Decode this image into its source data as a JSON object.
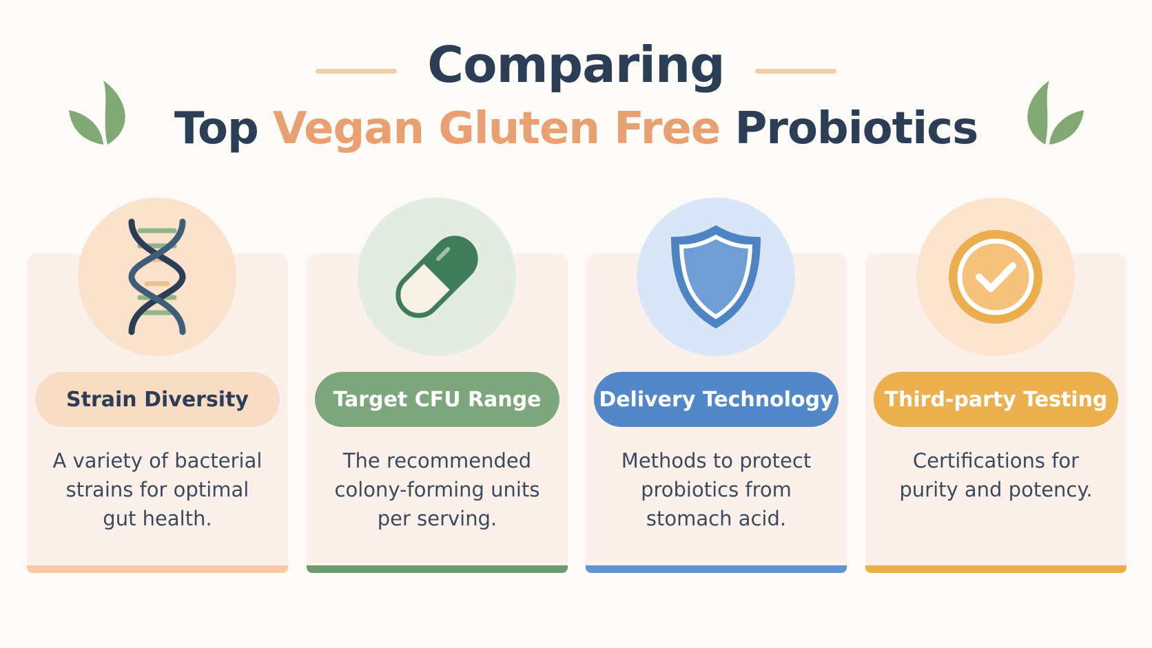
{
  "header": {
    "title_line1": "Comparing",
    "title_line2": {
      "start": "Top",
      "highlight": "Vegan Gluten Free",
      "end": "Probiotics"
    }
  },
  "cards": [
    {
      "title": "Strain Diversity",
      "description": "A variety of bacterial strains for optimal gut health."
    },
    {
      "title": "Target CFU Range",
      "description": "The recommended colony-forming units per serving."
    },
    {
      "title": "Delivery Technology",
      "description": "Methods to protect probiotics from stomach acid."
    },
    {
      "title": "Third-party Testing",
      "description": "Certifications for purity and potency."
    }
  ]
}
